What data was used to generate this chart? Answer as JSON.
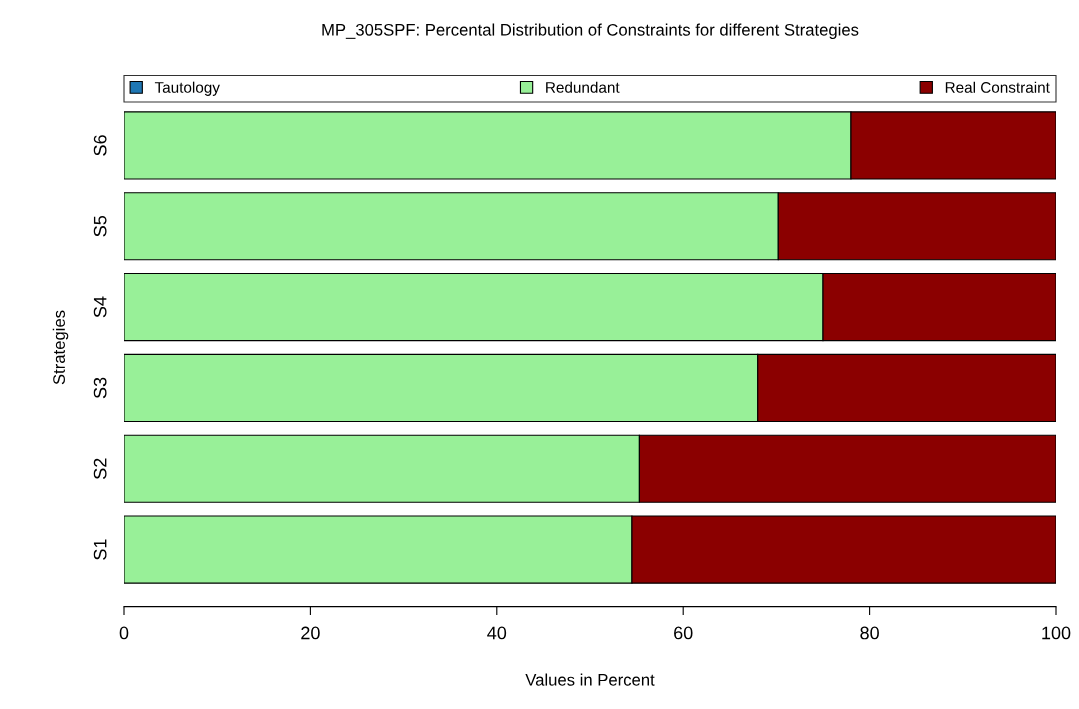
{
  "chart_data": {
    "type": "bar",
    "orientation": "horizontal",
    "stacked": true,
    "title": "MP_305SPF: Percental Distribution of Constraints for different Strategies",
    "xlabel": "Values in Percent",
    "ylabel": "Strategies",
    "categories": [
      "S6",
      "S5",
      "S4",
      "S3",
      "S2",
      "S1"
    ],
    "series": [
      {
        "name": "Tautology",
        "color": "#1f77b4",
        "values": [
          0,
          0,
          0,
          0,
          0,
          0
        ]
      },
      {
        "name": "Redundant",
        "color": "#98f098",
        "values": [
          78.0,
          70.2,
          75.0,
          68.0,
          55.3,
          54.5
        ]
      },
      {
        "name": "Real Constraint",
        "color": "#8b0000",
        "values": [
          22.0,
          29.8,
          25.0,
          32.0,
          44.7,
          45.5
        ]
      }
    ],
    "xlim": [
      0,
      100
    ],
    "xticks": [
      0,
      20,
      40,
      60,
      80,
      100
    ],
    "grid": false,
    "legend": "top"
  }
}
